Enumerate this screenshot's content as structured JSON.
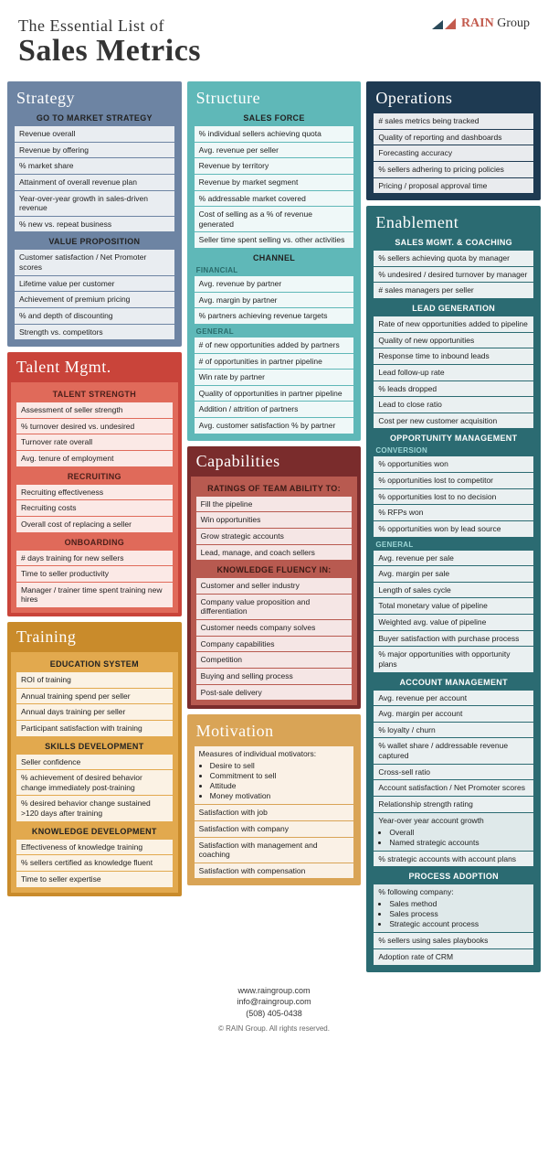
{
  "header": {
    "pretitle": "The Essential List of",
    "title": "Sales Metrics",
    "logo": {
      "rain": "RAIN",
      "group": "Group",
      "tri_dark": "#2a4a5a",
      "tri_red": "#c35b4e"
    }
  },
  "colors": {
    "strategy": "#6d84a3",
    "talent_header": "#c9443a",
    "talent_body": "#e06a5a",
    "training_header": "#c98b2b",
    "training_body": "#e2a94e",
    "structure": "#5fb8b8",
    "capabilities_header": "#7a2c2c",
    "capabilities_body": "#b85a50",
    "motivation": "#d9a456",
    "operations": "#1e3a52",
    "enablement": "#2b6b72"
  },
  "blocks": {
    "strategy": {
      "title": "Strategy",
      "sections": [
        {
          "title": "GO TO MARKET STRATEGY",
          "items": [
            "Revenue overall",
            "Revenue by offering",
            "% market share",
            "Attainment of overall revenue plan",
            "Year-over-year growth in sales-driven revenue",
            "% new vs. repeat business"
          ]
        },
        {
          "title": "VALUE PROPOSITION",
          "items": [
            "Customer satisfaction / Net Promoter scores",
            "Lifetime value per customer",
            "Achievement of premium pricing",
            "% and depth of discounting",
            "Strength vs. competitors"
          ]
        }
      ]
    },
    "talent": {
      "title": "Talent Mgmt.",
      "sections": [
        {
          "title": "TALENT STRENGTH",
          "items": [
            "Assessment of seller strength",
            "% turnover desired vs. undesired",
            "Turnover rate overall",
            "Avg. tenure of employment"
          ]
        },
        {
          "title": "RECRUITING",
          "items": [
            "Recruiting effectiveness",
            "Recruiting costs",
            "Overall cost of replacing a seller"
          ]
        },
        {
          "title": "ONBOARDING",
          "items": [
            "# days training for new sellers",
            "Time to seller productivity",
            "Manager / trainer time spent training new hires"
          ]
        }
      ]
    },
    "training": {
      "title": "Training",
      "sections": [
        {
          "title": "EDUCATION SYSTEM",
          "items": [
            "ROI of training",
            "Annual training spend per seller",
            "Annual days training per seller",
            "Participant satisfaction with training"
          ]
        },
        {
          "title": "SKILLS DEVELOPMENT",
          "items": [
            "Seller confidence",
            "% achievement of desired behavior change immediately post-training",
            "% desired behavior change sustained >120 days after training"
          ]
        },
        {
          "title": "KNOWLEDGE DEVELOPMENT",
          "items": [
            "Effectiveness of knowledge training",
            "% sellers certified as knowledge fluent",
            "Time to seller expertise"
          ]
        }
      ]
    },
    "structure": {
      "title": "Structure",
      "sections": [
        {
          "title": "SALES FORCE",
          "items": [
            "% individual sellers achieving quota",
            "Avg. revenue per seller",
            "Revenue by territory",
            "Revenue by market segment",
            "% addressable market covered",
            "Cost of selling as a % of revenue generated",
            "Seller time spent selling vs. other activities"
          ]
        },
        {
          "title": "CHANNEL",
          "subsections": [
            {
              "label": "FINANCIAL",
              "items": [
                "Avg. revenue by partner",
                "Avg. margin by partner",
                "% partners achieving revenue targets"
              ]
            },
            {
              "label": "GENERAL",
              "items": [
                "# of new opportunities added by partners",
                "# of opportunities in partner pipeline",
                "Win rate by partner",
                "Quality of opportunities in partner pipeline",
                "Addition / attrition of partners",
                "Avg. customer satisfaction % by partner"
              ]
            }
          ]
        }
      ]
    },
    "capabilities": {
      "title": "Capabilities",
      "sections": [
        {
          "title": "RATINGS OF TEAM ABILITY TO:",
          "items": [
            "Fill the pipeline",
            "Win opportunities",
            "Grow strategic accounts",
            "Lead, manage, and coach sellers"
          ]
        },
        {
          "title": "KNOWLEDGE FLUENCY IN:",
          "items": [
            "Customer and seller industry",
            "Company value proposition and differentiation",
            "Customer needs company solves",
            "Company capabilities",
            "Competition",
            "Buying and selling process",
            "Post-sale delivery"
          ]
        }
      ]
    },
    "motivation": {
      "title": "Motivation",
      "list_lead": "Measures of individual motivators:",
      "list_items": [
        "Desire to sell",
        "Commitment to sell",
        "Attitude",
        "Money motivation"
      ],
      "items": [
        "Satisfaction with job",
        "Satisfaction with company",
        "Satisfaction with management and coaching",
        "Satisfaction with compensation"
      ]
    },
    "operations": {
      "title": "Operations",
      "items": [
        "# sales metrics being tracked",
        "Quality of reporting and dashboards",
        "Forecasting accuracy",
        "% sellers adhering to pricing policies",
        "Pricing / proposal approval time"
      ]
    },
    "enablement": {
      "title": "Enablement",
      "sections": [
        {
          "title": "SALES MGMT. & COACHING",
          "items": [
            "% sellers achieving quota by manager",
            "% undesired / desired turnover by manager",
            "# sales managers per seller"
          ]
        },
        {
          "title": "LEAD GENERATION",
          "items": [
            "Rate of new opportunities added to pipeline",
            "Quality of new opportunities",
            "Response time to inbound leads",
            "Lead follow-up rate",
            "% leads dropped",
            "Lead to close ratio",
            "Cost per new customer acquisition"
          ]
        },
        {
          "title": "OPPORTUNITY MANAGEMENT",
          "subsections": [
            {
              "label": "CONVERSION",
              "items": [
                "% opportunities won",
                "% opportunities lost to competitor",
                "% opportunities lost to no decision",
                "% RFPs won",
                "% opportunities won by lead source"
              ]
            },
            {
              "label": "GENERAL",
              "items": [
                "Avg. revenue per sale",
                "Avg. margin per sale",
                "Length of sales cycle",
                "Total monetary value of pipeline",
                "Weighted avg. value of pipeline",
                "Buyer satisfaction with purchase process",
                "% major opportunities with opportunity plans"
              ]
            }
          ]
        },
        {
          "title": "ACCOUNT MANAGEMENT",
          "items": [
            "Avg. revenue per account",
            "Avg. margin per account",
            "% loyalty / churn",
            "% wallet share / addressable revenue captured",
            "Cross-sell ratio",
            "Account satisfaction / Net Promoter scores",
            "Relationship strength rating",
            {
              "lead": "Year-over year account growth",
              "bullets": [
                "Overall",
                "Named strategic accounts"
              ]
            },
            "% strategic accounts with account plans"
          ]
        },
        {
          "title": "PROCESS ADOPTION",
          "items": [
            {
              "lead": "% following company:",
              "bullets": [
                "Sales method",
                "Sales process",
                "Strategic account process"
              ]
            },
            "% sellers using sales playbooks",
            "Adoption rate of CRM"
          ]
        }
      ]
    }
  },
  "footer": {
    "url": "www.raingroup.com",
    "email": "info@raingroup.com",
    "phone": "(508) 405-0438",
    "copyright": "© RAIN Group. All rights reserved."
  }
}
